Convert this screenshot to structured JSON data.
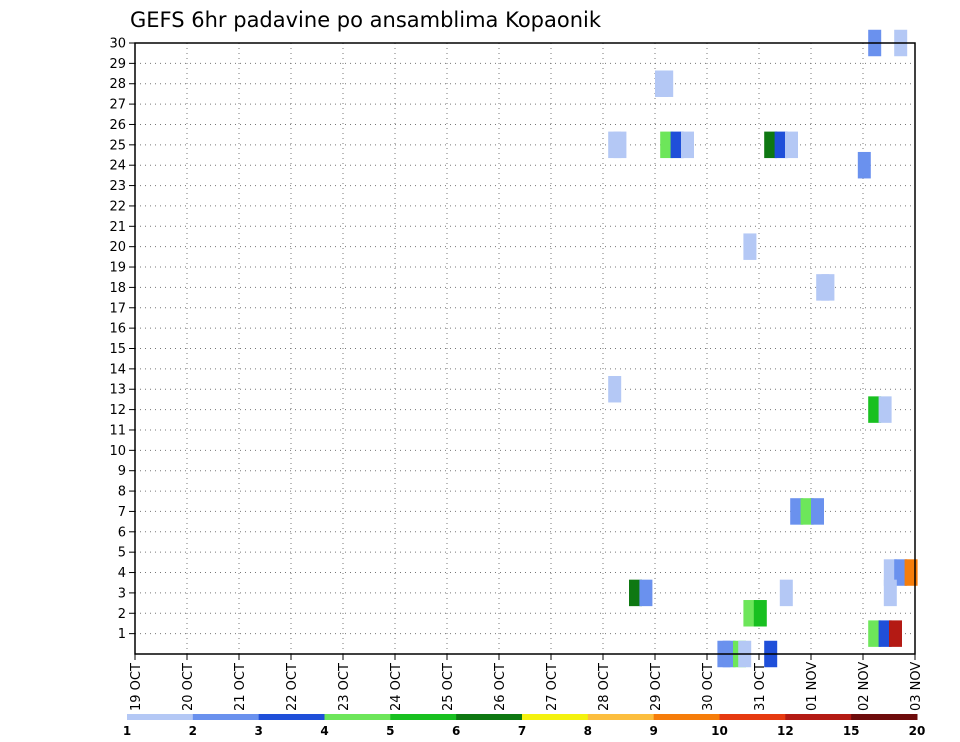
{
  "chart_data": {
    "type": "heatmap",
    "title": "GEFS 6hr padavine po ansamblima Kopaonik",
    "xlabel": "",
    "ylabel": "",
    "x_tick_labels": [
      "19 OCT",
      "20 OCT",
      "21 OCT",
      "22 OCT",
      "23 OCT",
      "24 OCT",
      "25 OCT",
      "26 OCT",
      "27 OCT",
      "28 OCT",
      "29 OCT",
      "30 OCT",
      "31 OCT",
      "01 NOV",
      "02 NOV",
      "03 NOV"
    ],
    "y_tick_labels": [
      "1",
      "2",
      "3",
      "4",
      "5",
      "6",
      "7",
      "8",
      "9",
      "10",
      "11",
      "12",
      "13",
      "14",
      "15",
      "16",
      "17",
      "18",
      "19",
      "20",
      "21",
      "22",
      "23",
      "24",
      "25",
      "26",
      "27",
      "28",
      "29",
      "30"
    ],
    "grid": true,
    "colorbar": {
      "colors": [
        "#b4c8f5",
        "#6a91ee",
        "#1f4fd9",
        "#6de65a",
        "#18c020",
        "#0e7812",
        "#f4f20e",
        "#fcbe3e",
        "#f67d0a",
        "#e63a10",
        "#b41a14",
        "#6e0c0c"
      ],
      "tick_labels": [
        "1",
        "2",
        "3",
        "4",
        "5",
        "6",
        "7",
        "8",
        "9",
        "10",
        "12",
        "15",
        "20"
      ]
    },
    "cells": [
      {
        "member": 30,
        "x": 14.1,
        "level": 2
      },
      {
        "member": 30,
        "x": 14.6,
        "level": 1
      },
      {
        "member": 28,
        "x": 10.0,
        "level": 1
      },
      {
        "member": 28,
        "x": 10.1,
        "level": 1
      },
      {
        "member": 25,
        "x": 9.1,
        "level": 1
      },
      {
        "member": 25,
        "x": 9.2,
        "level": 1
      },
      {
        "member": 25,
        "x": 10.1,
        "level": 4
      },
      {
        "member": 25,
        "x": 10.3,
        "level": 3
      },
      {
        "member": 25,
        "x": 10.5,
        "level": 1
      },
      {
        "member": 25,
        "x": 12.1,
        "level": 6
      },
      {
        "member": 25,
        "x": 12.3,
        "level": 3
      },
      {
        "member": 25,
        "x": 12.5,
        "level": 1
      },
      {
        "member": 24,
        "x": 13.9,
        "level": 2
      },
      {
        "member": 20,
        "x": 11.7,
        "level": 1
      },
      {
        "member": 18,
        "x": 13.1,
        "level": 1
      },
      {
        "member": 18,
        "x": 13.2,
        "level": 1
      },
      {
        "member": 13,
        "x": 9.1,
        "level": 1
      },
      {
        "member": 12,
        "x": 14.1,
        "level": 5
      },
      {
        "member": 12,
        "x": 14.3,
        "level": 1
      },
      {
        "member": 7,
        "x": 12.6,
        "level": 2
      },
      {
        "member": 7,
        "x": 12.8,
        "level": 4
      },
      {
        "member": 7,
        "x": 13.0,
        "level": 2
      },
      {
        "member": 4,
        "x": 14.4,
        "level": 1
      },
      {
        "member": 4,
        "x": 14.6,
        "level": 2
      },
      {
        "member": 4,
        "x": 14.8,
        "level": 9
      },
      {
        "member": 3,
        "x": 9.5,
        "level": 6
      },
      {
        "member": 3,
        "x": 9.7,
        "level": 2
      },
      {
        "member": 3,
        "x": 12.4,
        "level": 1
      },
      {
        "member": 3,
        "x": 14.4,
        "level": 1
      },
      {
        "member": 2,
        "x": 11.7,
        "level": 4
      },
      {
        "member": 2,
        "x": 11.9,
        "level": 5
      },
      {
        "member": 1,
        "x": 14.1,
        "level": 4
      },
      {
        "member": 1,
        "x": 14.3,
        "level": 3
      },
      {
        "member": 1,
        "x": 14.5,
        "level": 11
      },
      {
        "member": 0,
        "x": 11.2,
        "level": 2
      },
      {
        "member": 0,
        "x": 11.3,
        "level": 2
      },
      {
        "member": 0,
        "x": 11.5,
        "level": 4
      },
      {
        "member": 0,
        "x": 11.6,
        "level": 1
      },
      {
        "member": 0,
        "x": 12.1,
        "level": 3
      }
    ]
  }
}
